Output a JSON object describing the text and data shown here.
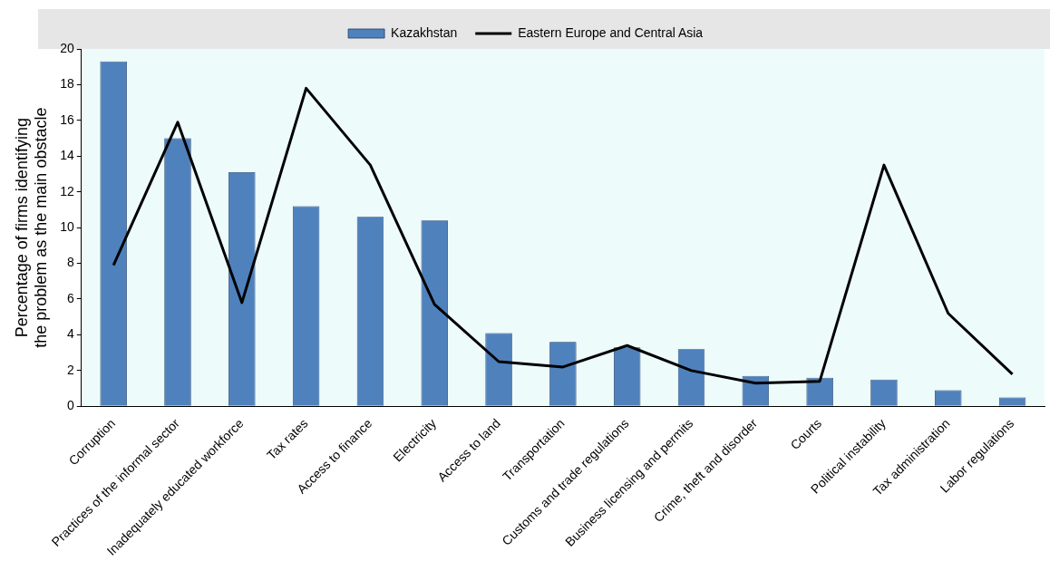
{
  "chart_data": {
    "type": "bar",
    "ylabel": "Percentage of firms identifying the problem as the main obstacle",
    "categories": [
      "Corruption",
      "Practices of the informal sector",
      "Inadequately educated workforce",
      "Tax rates",
      "Access to finance",
      "Electricity",
      "Access to land",
      "Transportation",
      "Customs and trade regulations",
      "Business licensing and permits",
      "Crime, theft and disorder",
      "Courts",
      "Political instability",
      "Tax administration",
      "Labor regulations"
    ],
    "series": [
      {
        "name": "Kazakhstan",
        "color": "#4f81bd",
        "values": [
          19.3,
          15.0,
          13.1,
          11.2,
          10.6,
          10.4,
          4.1,
          3.6,
          3.3,
          3.2,
          1.7,
          1.6,
          1.5,
          0.9,
          0.5
        ]
      },
      {
        "name": "Eastern Europe and Central Asia",
        "type": "line",
        "color": "#000000",
        "values": [
          7.9,
          15.9,
          5.8,
          17.8,
          13.5,
          5.7,
          2.5,
          2.2,
          3.4,
          2.0,
          1.3,
          1.4,
          13.5,
          5.2,
          1.8
        ]
      }
    ],
    "ylim": [
      0,
      20
    ],
    "yticks": [
      0,
      2,
      4,
      6,
      8,
      10,
      12,
      14,
      16,
      18,
      20
    ],
    "grid": false,
    "legend": "top",
    "marker": "none"
  }
}
